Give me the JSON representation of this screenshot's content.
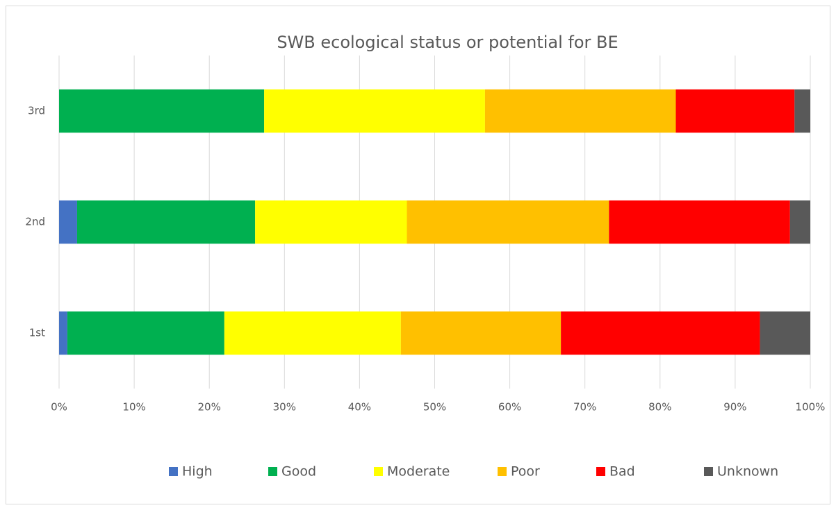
{
  "chart_data": {
    "type": "stacked_barh",
    "title": "SWB ecological status or potential for BE",
    "categories": [
      "1st",
      "2nd",
      "3rd"
    ],
    "series": [
      {
        "name": "High",
        "color": "#4472c4",
        "values": [
          1.1,
          2.4,
          0
        ]
      },
      {
        "name": "Good",
        "color": "#00b050",
        "values": [
          20.9,
          23.7,
          27.3
        ]
      },
      {
        "name": "Moderate",
        "color": "#ffff00",
        "values": [
          23.5,
          20.2,
          29.4
        ]
      },
      {
        "name": "Poor",
        "color": "#ffc000",
        "values": [
          21.3,
          26.9,
          25.4
        ]
      },
      {
        "name": "Bad",
        "color": "#ff0000",
        "values": [
          26.5,
          24.1,
          15.8
        ]
      },
      {
        "name": "Unknown",
        "color": "#595959",
        "values": [
          6.7,
          2.7,
          2.1
        ]
      }
    ],
    "xlim": [
      0,
      100
    ],
    "xticks": [
      {
        "value": 0,
        "label": "0%"
      },
      {
        "value": 10,
        "label": "10%"
      },
      {
        "value": 20,
        "label": "20%"
      },
      {
        "value": 30,
        "label": "30%"
      },
      {
        "value": 40,
        "label": "40%"
      },
      {
        "value": 50,
        "label": "50%"
      },
      {
        "value": 60,
        "label": "60%"
      },
      {
        "value": 70,
        "label": "70%"
      },
      {
        "value": 80,
        "label": "80%"
      },
      {
        "value": 90,
        "label": "90%"
      },
      {
        "value": 100,
        "label": "100%"
      }
    ],
    "grid": true,
    "legend": "bottom"
  }
}
